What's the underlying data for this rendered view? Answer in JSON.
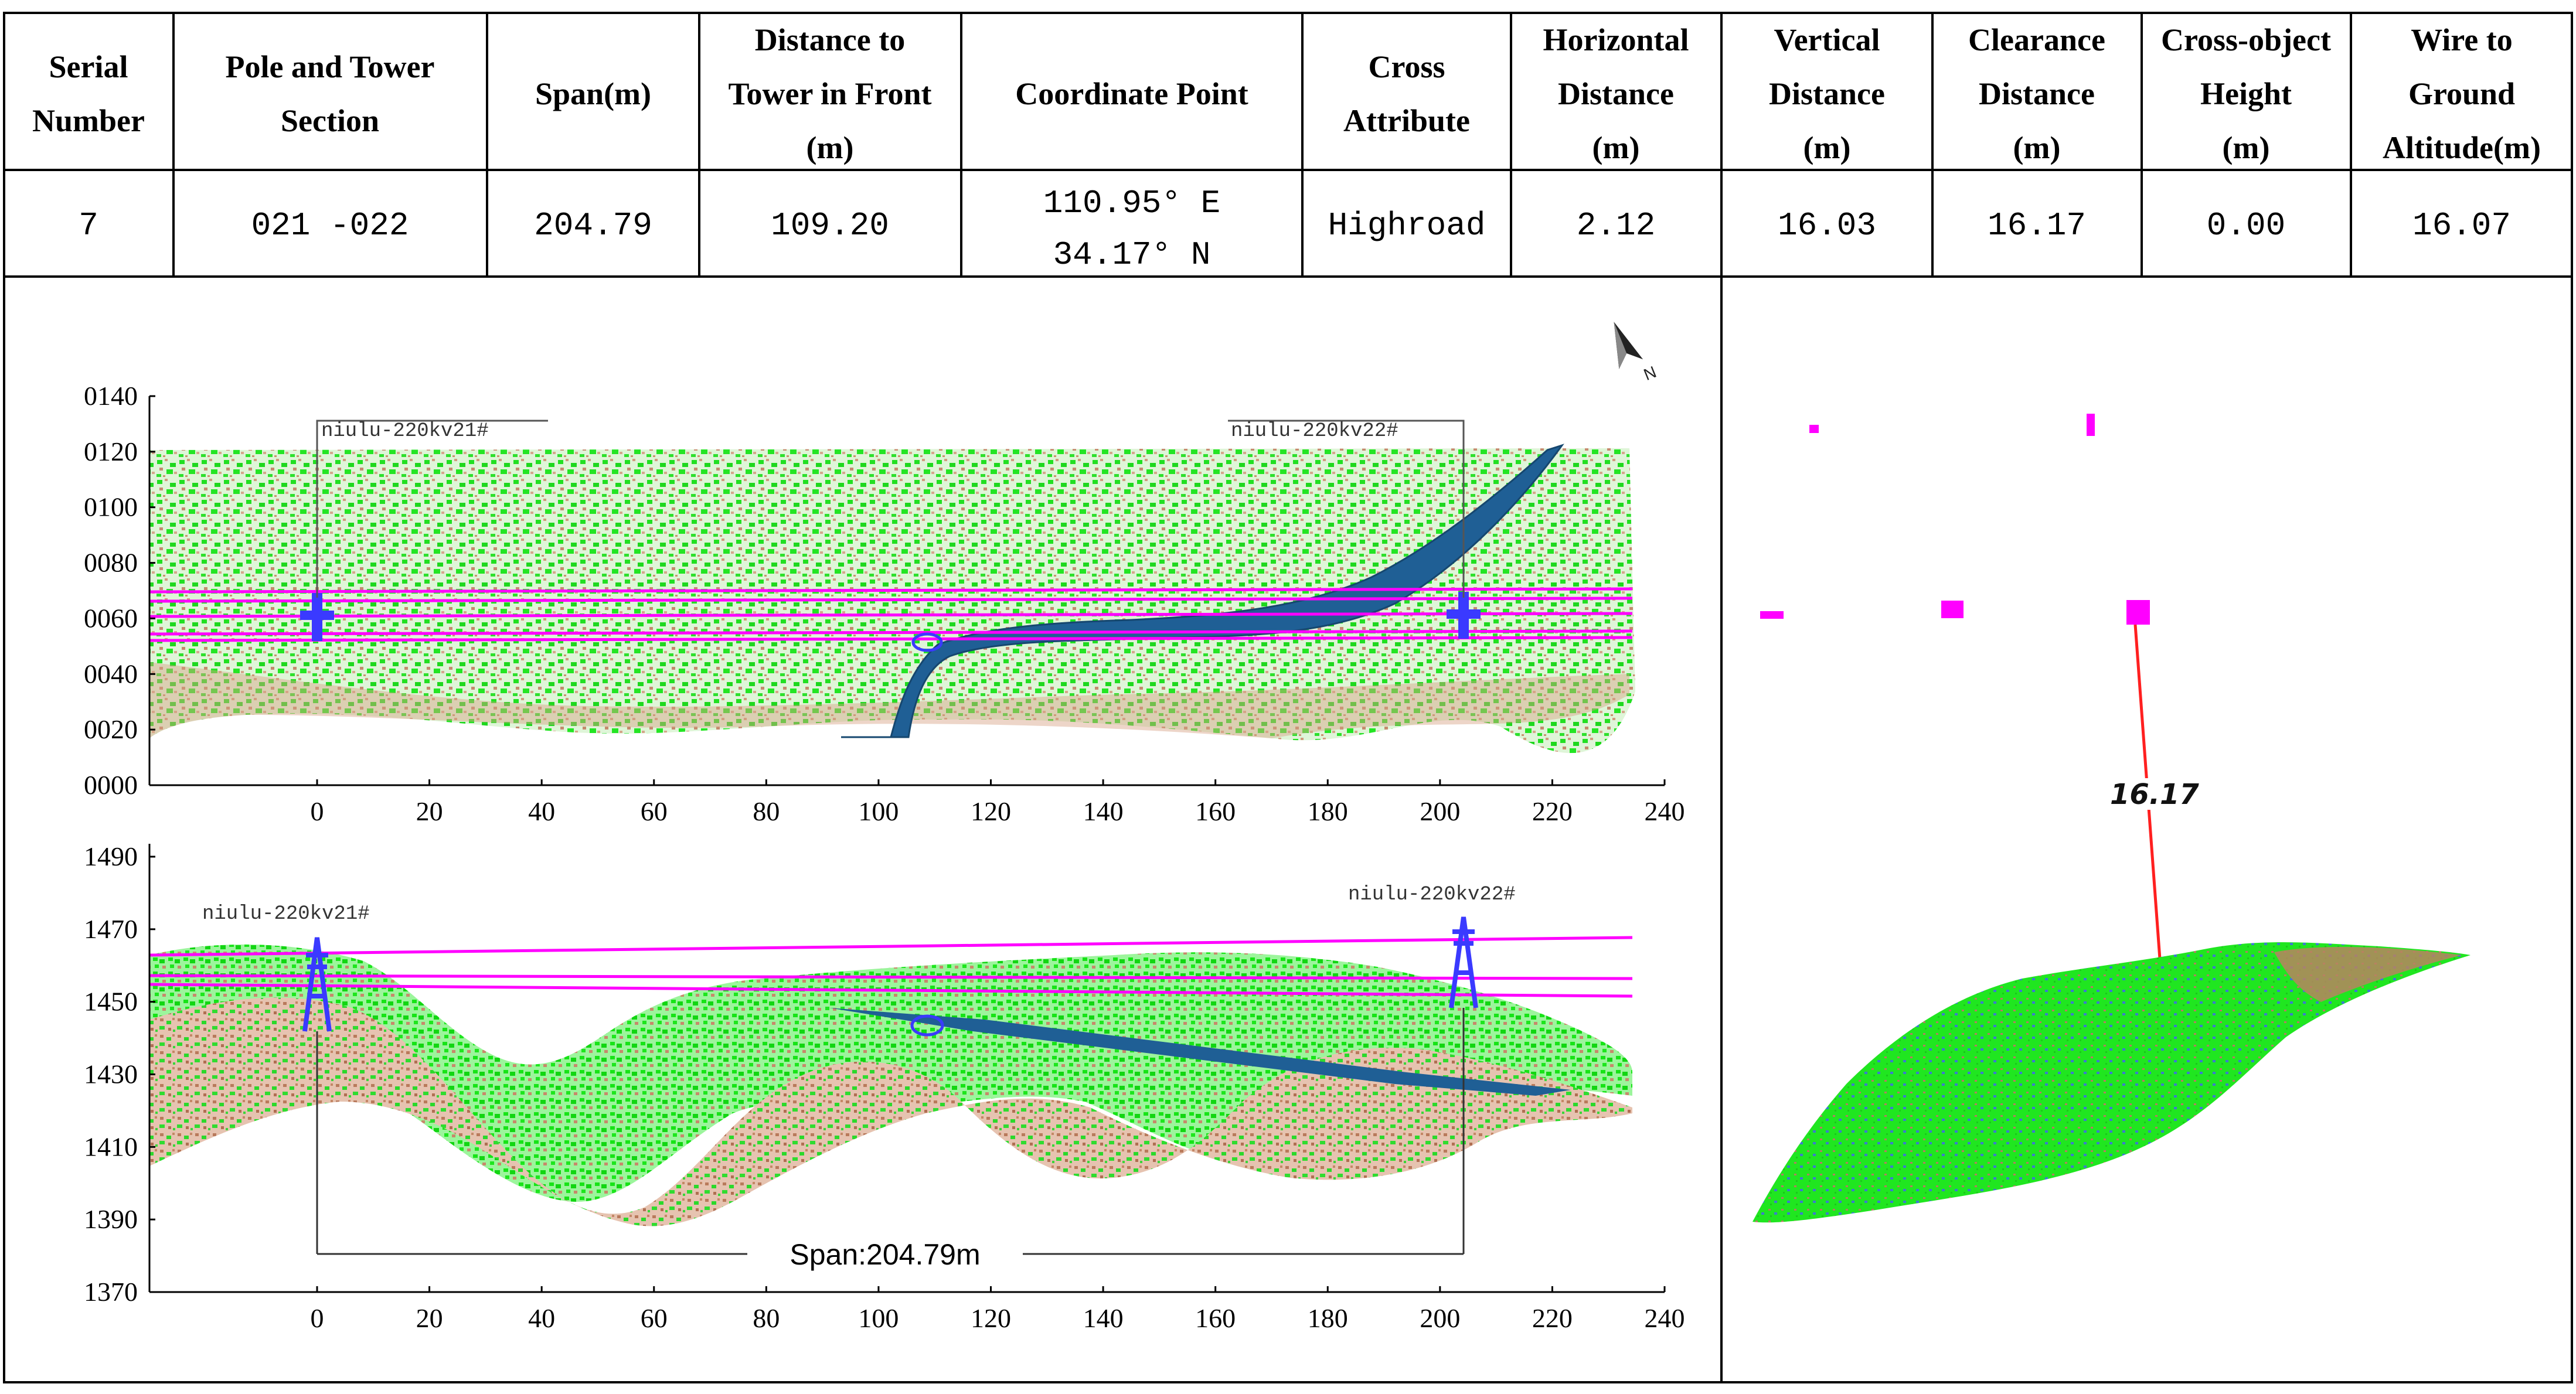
{
  "table": {
    "headers": [
      [
        "Serial",
        "Number"
      ],
      [
        "Pole and Tower",
        "Section"
      ],
      [
        "Span(m)"
      ],
      [
        "Distance to",
        "Tower in Front",
        "(m)"
      ],
      [
        "Coordinate Point"
      ],
      [
        "Cross",
        "Attribute"
      ],
      [
        "Horizontal",
        "Distance",
        "(m)"
      ],
      [
        "Vertical",
        "Distance",
        "(m)"
      ],
      [
        "Clearance",
        "Distance",
        "(m)"
      ],
      [
        "Cross-object",
        "Height",
        "(m)"
      ],
      [
        "Wire to",
        "Ground",
        "Altitude(m)"
      ]
    ],
    "row": {
      "serial": "7",
      "section": "021 -022",
      "span": "204.79",
      "distance_front": "109.20",
      "coord_e": "110.95° E",
      "coord_n": "34.17° N",
      "cross_attribute": "Highroad",
      "horizontal": "2.12",
      "vertical": "16.03",
      "clearance": "16.17",
      "cross_height": "0.00",
      "altitude": "16.07"
    }
  },
  "plan_view": {
    "y_ticks": [
      "0140",
      "0120",
      "0100",
      "0080",
      "0060",
      "0040",
      "0020",
      "0000"
    ],
    "x_ticks": [
      "0",
      "20",
      "40",
      "60",
      "80",
      "100",
      "120",
      "140",
      "160",
      "180",
      "200",
      "220",
      "240"
    ],
    "tower_left": "niulu-220kv21#",
    "tower_right": "niulu-220kv22#"
  },
  "profile_view": {
    "y_ticks": [
      "1490",
      "1470",
      "1450",
      "1430",
      "1410",
      "1390",
      "1370"
    ],
    "x_ticks": [
      "0",
      "20",
      "40",
      "60",
      "80",
      "100",
      "120",
      "140",
      "160",
      "180",
      "200",
      "220",
      "240"
    ],
    "tower_left": "niulu-220kv21#",
    "tower_right": "niulu-220kv22#",
    "span_label": "Span:204.79m"
  },
  "view_3d": {
    "clearance_label": "16.17"
  },
  "colors": {
    "vegetation": "#1ee61e",
    "ground": "#c8876a",
    "wire": "#ff00ff",
    "tower": "#3a3aff",
    "road": "#1f5f95",
    "marker": "#ff2020"
  }
}
